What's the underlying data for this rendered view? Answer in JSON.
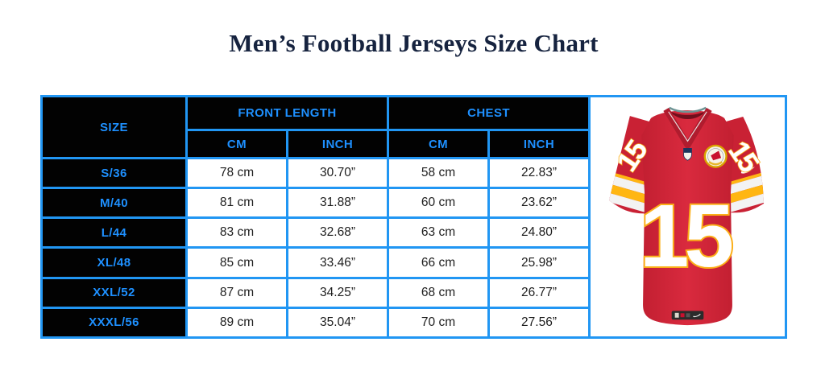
{
  "title": "Men’s Football Jerseys Size Chart",
  "colors": {
    "accent_blue": "#2196F3",
    "header_text_blue": "#1E90FF",
    "header_bg": "#000000",
    "title_navy": "#16233F",
    "jersey_red": "#D22839",
    "jersey_gold": "#FFB612",
    "number_white": "#FFFFFF"
  },
  "table": {
    "headers": {
      "size": "SIZE",
      "front_length": "FRONT LENGTH",
      "chest": "CHEST",
      "cm": "CM",
      "inch": "INCH"
    },
    "rows": [
      {
        "size": "S/36",
        "front_cm": "78 cm",
        "front_inch": "30.70”",
        "chest_cm": "58 cm",
        "chest_inch": "22.83”"
      },
      {
        "size": "M/40",
        "front_cm": "81 cm",
        "front_inch": "31.88”",
        "chest_cm": "60 cm",
        "chest_inch": "23.62”"
      },
      {
        "size": "L/44",
        "front_cm": "83 cm",
        "front_inch": "32.68”",
        "chest_cm": "63 cm",
        "chest_inch": "24.80”"
      },
      {
        "size": "XL/48",
        "front_cm": "85 cm",
        "front_inch": "33.46”",
        "chest_cm": "66 cm",
        "chest_inch": "25.98”"
      },
      {
        "size": "XXL/52",
        "front_cm": "87 cm",
        "front_inch": "34.25”",
        "chest_cm": "68 cm",
        "chest_inch": "26.77”"
      },
      {
        "size": "XXXL/56",
        "front_cm": "89 cm",
        "front_inch": "35.04”",
        "chest_cm": "70 cm",
        "chest_inch": "27.56”"
      }
    ]
  },
  "jersey": {
    "number": "15"
  },
  "chart_data": {
    "type": "table",
    "title": "Men’s Football Jerseys Size Chart",
    "columns": [
      "SIZE",
      "FRONT LENGTH CM",
      "FRONT LENGTH INCH",
      "CHEST CM",
      "CHEST INCH"
    ],
    "rows": [
      [
        "S/36",
        78,
        30.7,
        58,
        22.83
      ],
      [
        "M/40",
        81,
        31.88,
        60,
        23.62
      ],
      [
        "L/44",
        83,
        32.68,
        63,
        24.8
      ],
      [
        "XL/48",
        85,
        33.46,
        66,
        25.98
      ],
      [
        "XXL/52",
        87,
        34.25,
        68,
        26.77
      ],
      [
        "XXXL/56",
        89,
        35.04,
        70,
        27.56
      ]
    ]
  }
}
